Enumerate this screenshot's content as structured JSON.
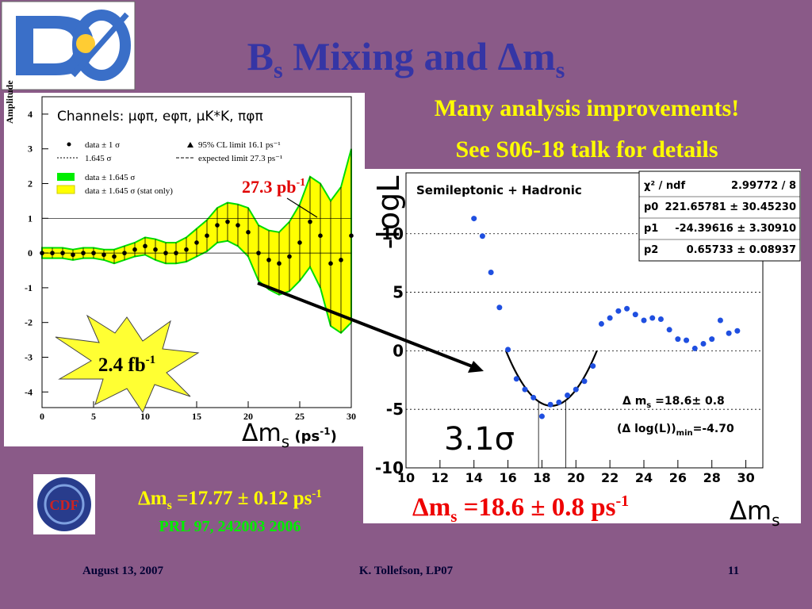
{
  "title": {
    "a": "B",
    "sub": "s",
    "b": " Mixing and Δm",
    "sub2": "s"
  },
  "highlights": [
    "Many analysis improvements!",
    "See S06-18 talk for details"
  ],
  "chart_data": [
    {
      "type": "line",
      "ylabel": "Amplitude",
      "xlabel": {
        "a": "Δm",
        "sub": "s",
        "b": " (ps",
        "sup": "-1",
        "c": ")"
      },
      "annotation": "Channels: μφπ, eφπ, μK*K, πφπ",
      "legend": [
        "data ± 1 σ",
        "1.645 σ",
        "data ± 1.645 σ",
        "data ± 1.645 σ (stat only)",
        "95% CL limit  16.1 ps⁻¹",
        "expected limit 27.3 ps⁻¹"
      ],
      "luminosity": {
        "a": "2.4 fb",
        "sup": "-1"
      },
      "crossing": {
        "a": "27.3 pb",
        "sup": "-1"
      },
      "x": [
        0,
        1,
        2,
        3,
        4,
        5,
        6,
        7,
        8,
        9,
        10,
        11,
        12,
        13,
        14,
        15,
        16,
        17,
        18,
        19,
        20,
        21,
        22,
        23,
        24,
        25,
        26,
        27,
        28,
        29,
        30
      ],
      "values": [
        0,
        0,
        0,
        -0.05,
        0,
        0,
        -0.05,
        -0.1,
        0,
        0.1,
        0.2,
        0.1,
        0,
        0,
        0.1,
        0.3,
        0.5,
        0.8,
        0.9,
        0.8,
        0.6,
        0,
        -0.2,
        -0.3,
        -0.1,
        0.3,
        0.9,
        0.5,
        -0.3,
        -0.2,
        0.5
      ],
      "errors": [
        0.15,
        0.15,
        0.15,
        0.15,
        0.15,
        0.15,
        0.15,
        0.2,
        0.2,
        0.2,
        0.25,
        0.3,
        0.3,
        0.3,
        0.35,
        0.4,
        0.45,
        0.5,
        0.55,
        0.6,
        0.7,
        0.8,
        0.85,
        0.9,
        1.0,
        1.1,
        1.3,
        1.5,
        1.8,
        2.1,
        2.5
      ],
      "color": "#000000",
      "band_color": "#ffff00",
      "edge_color": "#00dd00",
      "reference_line": 1,
      "xlim": [
        0,
        30
      ],
      "ylim": [
        -4.45,
        4.5
      ],
      "xticks": [
        0,
        5,
        10,
        15,
        20,
        25,
        30
      ],
      "yticks": [
        -4,
        -3,
        -2,
        -1,
        0,
        1,
        2,
        3,
        4
      ]
    },
    {
      "type": "scatter",
      "title": "Semileptonic + Hadronic",
      "ylabel": "-logL",
      "xlabel": {
        "a": "Δm",
        "sub": "s"
      },
      "x": [
        14,
        14.5,
        15,
        15.5,
        16,
        16.5,
        17,
        17.5,
        18,
        18.5,
        19,
        19.5,
        20,
        20.5,
        21,
        21.5,
        22,
        22.5,
        23,
        23.5,
        24,
        24.5,
        25,
        25.5,
        26,
        26.5,
        27,
        27.5,
        28,
        28.5,
        29,
        29.5
      ],
      "values": [
        11.3,
        9.8,
        6.7,
        3.7,
        0.1,
        -2.4,
        -3.3,
        -4.0,
        -5.6,
        -4.6,
        -4.4,
        -3.8,
        -3.3,
        -2.6,
        -1.3,
        2.3,
        2.8,
        3.4,
        3.6,
        3.1,
        2.6,
        2.8,
        2.7,
        1.8,
        1.0,
        0.9,
        0.2,
        0.6,
        1.0,
        2.6,
        1.5,
        1.7
      ],
      "color": "#1f4fe0",
      "stats": [
        [
          "χ² / ndf",
          "2.99772 / 8"
        ],
        [
          "p0",
          "221.65781 ± 30.45230"
        ],
        [
          "p1",
          "-24.39616 ± 3.30910"
        ],
        [
          "p2",
          "0.65733 ± 0.08937"
        ]
      ],
      "fit": {
        "p0": 221.65781,
        "p1": -24.39616,
        "p2": 0.65733
      },
      "result": {
        "value": 18.6,
        "error": 0.8,
        "a": "Δ m",
        "sub": "s",
        "b": " =18.6± 0.8"
      },
      "minimum": {
        "a": "(Δ log(L))",
        "sub": "min",
        "b": "=-4.70"
      },
      "significance": "3.1σ",
      "xlim": [
        10,
        31
      ],
      "ylim": [
        -10,
        15.2
      ],
      "xticks": [
        10,
        12,
        14,
        16,
        18,
        20,
        22,
        24,
        26,
        28,
        30
      ],
      "yticks": [
        -10,
        -5,
        0,
        5,
        10
      ],
      "grid": true
    }
  ],
  "cdf_result": {
    "logo": "CDF",
    "a": "Δm",
    "sub": "s",
    "b": " =17.77 ± 0.12 ps",
    "sup": "-1",
    "reference": "PRL 97, 242003 2006"
  },
  "d0_result": {
    "a": "Δm",
    "sub": "s",
    "b": " =18.6 ± 0.8 ps",
    "sup": "-1"
  },
  "footer": {
    "date": "August 13, 2007",
    "author": "K. Tollefson, LP07",
    "page": 11
  }
}
